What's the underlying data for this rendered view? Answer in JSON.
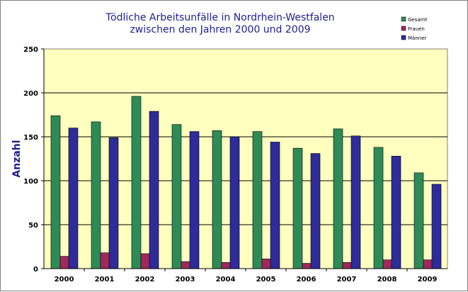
{
  "chart_data": {
    "type": "bar",
    "title_lines": [
      "Tödliche Arbeitsunfälle in Nordrhein-Westfalen",
      "zwischen den Jahren 2000 und 2009"
    ],
    "xlabel": "",
    "ylabel": "Anzahl",
    "ylim": [
      0,
      250
    ],
    "yticks": [
      0,
      50,
      100,
      150,
      200,
      250
    ],
    "categories": [
      "2000",
      "2001",
      "2002",
      "2003",
      "2004",
      "2005",
      "2006",
      "2007",
      "2008",
      "2009"
    ],
    "series": [
      {
        "name": "Gesamt",
        "color": "#2e8b57",
        "values": [
          174,
          167,
          196,
          164,
          157,
          156,
          137,
          159,
          138,
          109
        ]
      },
      {
        "name": "Frauen",
        "color": "#a0285a",
        "values": [
          14,
          18,
          17,
          8,
          7,
          11,
          6,
          7,
          10,
          10
        ]
      },
      {
        "name": "Männer",
        "color": "#2e2b9a",
        "values": [
          160,
          149,
          179,
          156,
          150,
          144,
          131,
          151,
          128,
          96
        ]
      }
    ],
    "grid": true,
    "legend_position": "top-right",
    "plot_background": "#ffffc0"
  }
}
